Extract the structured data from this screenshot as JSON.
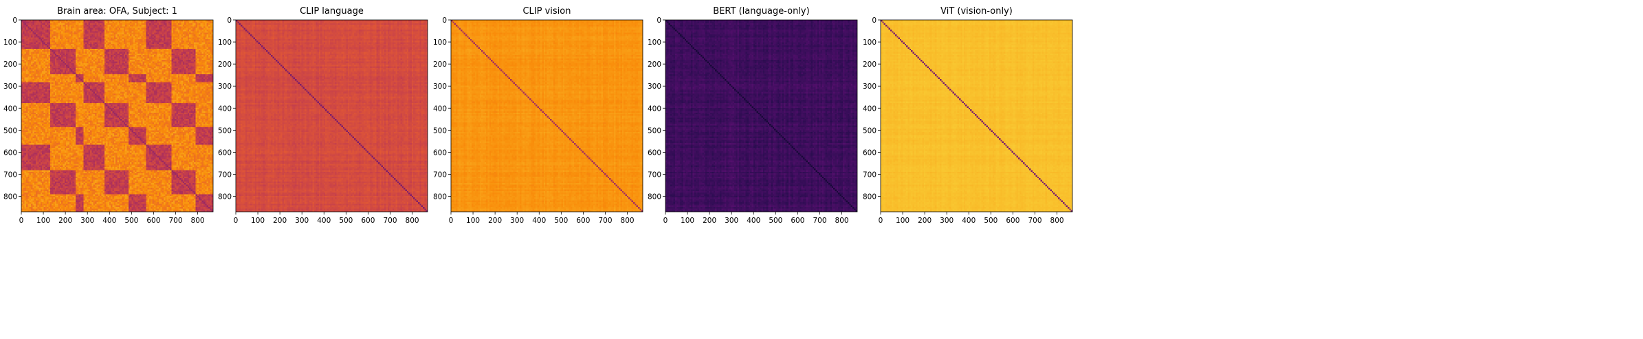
{
  "chart_data": [
    {
      "type": "heatmap",
      "title": "Brain area: OFA, Subject: 1",
      "xlabel": "",
      "ylabel": "",
      "xlim": [
        0,
        870
      ],
      "ylim": [
        870,
        0
      ],
      "xticks": [
        0,
        100,
        200,
        300,
        400,
        500,
        600,
        700,
        800
      ],
      "yticks": [
        0,
        100,
        200,
        300,
        400,
        500,
        600,
        700,
        800
      ],
      "colormap": "inferno",
      "base_level": 0.62,
      "diagonal_level": 0.42,
      "structure": "block",
      "blocks": [
        [
          0,
          130
        ],
        [
          130,
          240
        ],
        [
          240,
          280
        ],
        [
          280,
          370
        ],
        [
          370,
          480
        ],
        [
          480,
          560
        ],
        [
          560,
          680
        ],
        [
          680,
          790
        ],
        [
          790,
          870
        ]
      ],
      "block_in_level": 0.52,
      "block_out_level": 0.74,
      "noise": 0.12
    },
    {
      "type": "heatmap",
      "title": "CLIP language",
      "xlabel": "",
      "ylabel": "",
      "xlim": [
        0,
        870
      ],
      "ylim": [
        870,
        0
      ],
      "xticks": [
        0,
        100,
        200,
        300,
        400,
        500,
        600,
        700,
        800
      ],
      "yticks": [
        0,
        100,
        200,
        300,
        400,
        500,
        600,
        700,
        800
      ],
      "colormap": "inferno",
      "base_level": 0.58,
      "diagonal_level": 0.35,
      "structure": "stripes",
      "noise": 0.06
    },
    {
      "type": "heatmap",
      "title": "CLIP vision",
      "xlabel": "",
      "ylabel": "",
      "xlim": [
        0,
        870
      ],
      "ylim": [
        870,
        0
      ],
      "xticks": [
        0,
        100,
        200,
        300,
        400,
        500,
        600,
        700,
        800
      ],
      "yticks": [
        0,
        100,
        200,
        300,
        400,
        500,
        600,
        700,
        800
      ],
      "colormap": "inferno",
      "base_level": 0.77,
      "diagonal_level": 0.45,
      "structure": "stripes",
      "noise": 0.04
    },
    {
      "type": "heatmap",
      "title": "BERT (language-only)",
      "xlabel": "",
      "ylabel": "",
      "xlim": [
        0,
        870
      ],
      "ylim": [
        870,
        0
      ],
      "xticks": [
        0,
        100,
        200,
        300,
        400,
        500,
        600,
        700,
        800
      ],
      "yticks": [
        0,
        100,
        200,
        300,
        400,
        500,
        600,
        700,
        800
      ],
      "colormap": "inferno",
      "base_level": 0.2,
      "diagonal_level": 0.1,
      "structure": "stripes",
      "noise": 0.06
    },
    {
      "type": "heatmap",
      "title": "ViT (vision-only)",
      "xlabel": "",
      "ylabel": "",
      "xlim": [
        0,
        870
      ],
      "ylim": [
        870,
        0
      ],
      "xticks": [
        0,
        100,
        200,
        300,
        400,
        500,
        600,
        700,
        800
      ],
      "yticks": [
        0,
        100,
        200,
        300,
        400,
        500,
        600,
        700,
        800
      ],
      "colormap": "inferno",
      "base_level": 0.86,
      "diagonal_level": 0.35,
      "structure": "stripes",
      "noise": 0.025
    }
  ]
}
